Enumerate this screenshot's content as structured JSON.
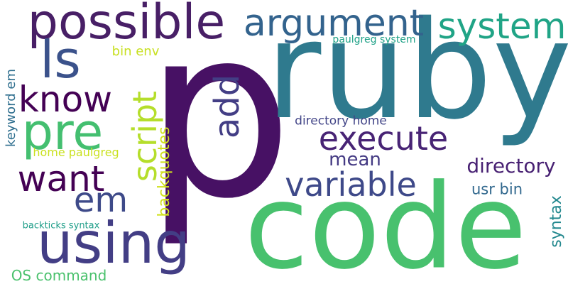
{
  "background_color": "#ffffff",
  "words": [
    {
      "text": "p",
      "color": "#471164"
    },
    {
      "text": "ruby",
      "color": "#2f7a8e"
    },
    {
      "text": "code",
      "color": "#48c16e"
    },
    {
      "text": "possible",
      "color": "#481f66"
    },
    {
      "text": "argument",
      "color": "#33638d"
    },
    {
      "text": "system",
      "color": "#20a486"
    },
    {
      "text": "ls",
      "color": "#3b528b"
    },
    {
      "text": "pre",
      "color": "#44bf70"
    },
    {
      "text": "know",
      "color": "#440154"
    },
    {
      "text": "want",
      "color": "#440154"
    },
    {
      "text": "using",
      "color": "#433e85"
    },
    {
      "text": "em",
      "color": "#3e4a89"
    },
    {
      "text": "script",
      "color": "#b5de2b"
    },
    {
      "text": "add",
      "color": "#433e85"
    },
    {
      "text": "execute",
      "color": "#482475"
    },
    {
      "text": "variable",
      "color": "#3e4989"
    },
    {
      "text": "directory",
      "color": "#482173"
    },
    {
      "text": "mean",
      "color": "#443a83"
    },
    {
      "text": "bin env",
      "color": "#c8e020"
    },
    {
      "text": "paulgreg system",
      "color": "#1fa187"
    },
    {
      "text": "directory home",
      "color": "#414487"
    },
    {
      "text": "keyword em",
      "color": "#2e6e8e"
    },
    {
      "text": "backquotes",
      "color": "#d0e11c"
    },
    {
      "text": "home paulgreg",
      "color": "#cae11f"
    },
    {
      "text": "usr bin",
      "color": "#31688e"
    },
    {
      "text": "syntax",
      "color": "#23888e"
    },
    {
      "text": "backticks syntax",
      "color": "#1f9e89"
    },
    {
      "text": "OS command",
      "color": "#4ac16d"
    }
  ]
}
